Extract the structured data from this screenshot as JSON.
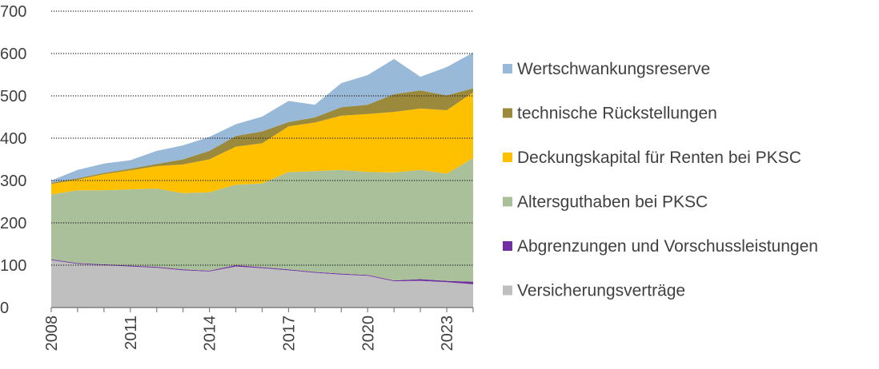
{
  "chart_data": {
    "type": "area",
    "stacked": true,
    "x": [
      2008,
      2009,
      2010,
      2011,
      2012,
      2013,
      2014,
      2015,
      2016,
      2017,
      2018,
      2019,
      2020,
      2021,
      2022,
      2023,
      2024
    ],
    "x_tick_labels": [
      "2008",
      "2011",
      "2014",
      "2017",
      "2020",
      "2023"
    ],
    "y_tick_labels": [
      "0",
      "100",
      "200",
      "300",
      "400",
      "500",
      "600",
      "700"
    ],
    "ylim": [
      0,
      700
    ],
    "grid": "horizontal dotted",
    "legend_position": "right",
    "series": [
      {
        "name": "Versicherungsverträge",
        "color": "#bfbfbf",
        "values": [
          112,
          103,
          100,
          97,
          94,
          88,
          85,
          97,
          93,
          88,
          82,
          78,
          75,
          62,
          63,
          60,
          55
        ]
      },
      {
        "name": "Abgrenzungen und Vorschussleistungen",
        "color": "#7030a0",
        "values": [
          2,
          2,
          2,
          2,
          2,
          2,
          2,
          3,
          2,
          2,
          2,
          2,
          2,
          2,
          4,
          3,
          6
        ]
      },
      {
        "name": "Altersguthaben bei PKSC",
        "color": "#a9c09a",
        "values": [
          153,
          172,
          175,
          180,
          185,
          180,
          185,
          190,
          198,
          230,
          238,
          245,
          243,
          255,
          258,
          253,
          292
        ]
      },
      {
        "name": "Deckungskapital für Renten bei PKSC",
        "color": "#ffc000",
        "values": [
          25,
          25,
          38,
          45,
          53,
          68,
          78,
          90,
          95,
          108,
          115,
          128,
          137,
          143,
          145,
          150,
          155
        ]
      },
      {
        "name": "technische Rückstellungen",
        "color": "#9c8a3c",
        "values": [
          3,
          3,
          3,
          4,
          5,
          12,
          20,
          25,
          28,
          10,
          12,
          20,
          22,
          42,
          43,
          35,
          10
        ]
      },
      {
        "name": "Wertschwankungsreserve",
        "color": "#98b9d8",
        "values": [
          5,
          20,
          22,
          20,
          31,
          33,
          33,
          28,
          35,
          50,
          30,
          57,
          70,
          83,
          32,
          67,
          84
        ]
      }
    ]
  },
  "legend_order": [
    "Wertschwankungsreserve",
    "technische Rückstellungen",
    "Deckungskapital für Renten bei PKSC",
    "Altersguthaben bei PKSC",
    "Abgrenzungen und Vorschussleistungen",
    "Versicherungsverträge"
  ]
}
